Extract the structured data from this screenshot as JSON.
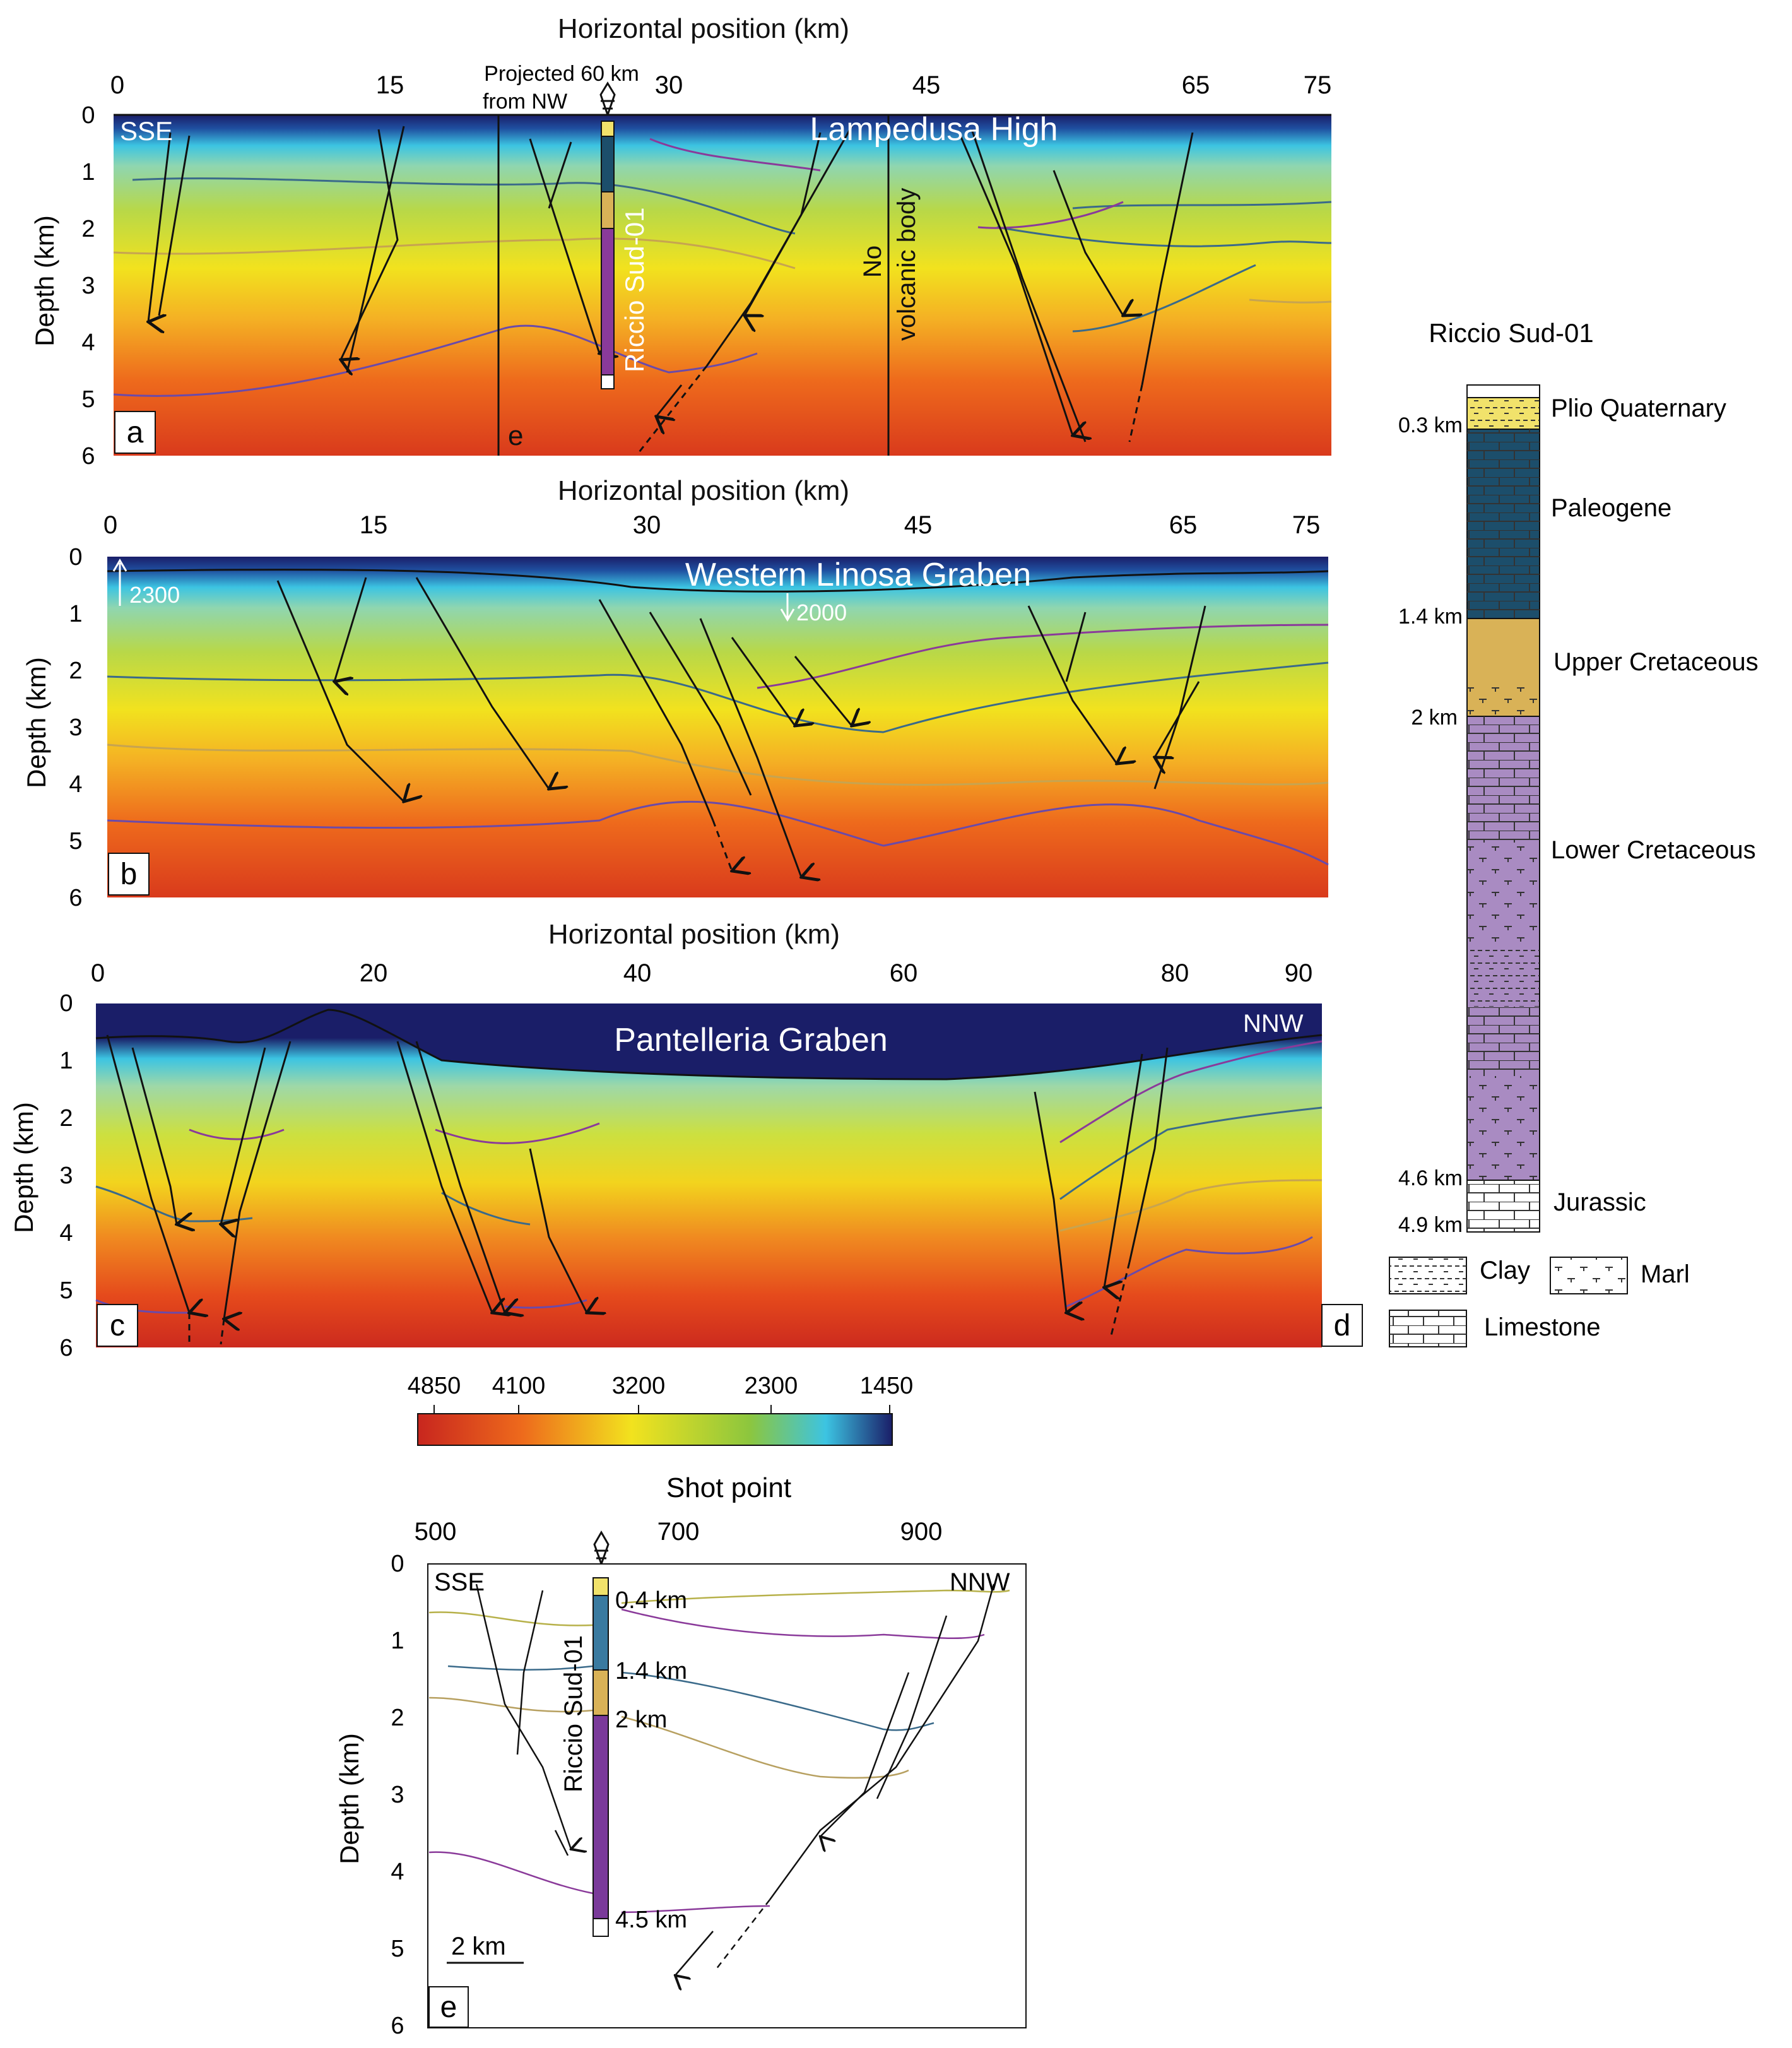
{
  "colors": {
    "deep_red": "#c8261e",
    "orange": "#ee6a1c",
    "yellow": "#f2e21e",
    "green": "#8cc63e",
    "cyan": "#3cc4e2",
    "navy": "#1a1e68",
    "plio": "#f1e26b",
    "paleogene": "#1c4e6b",
    "upper_cret": "#d9b257",
    "lower_cret": "#a98bc2",
    "jurassic": "#ffffff"
  },
  "panels": {
    "a": {
      "x_axis_title": "Horizontal position (km)",
      "x_ticks": [
        "0",
        "15",
        "30",
        "45",
        "65",
        "75"
      ],
      "y_axis_title": "Depth (km)",
      "y_ticks": [
        "0",
        "1",
        "2",
        "3",
        "4",
        "5",
        "6"
      ],
      "direction_left": "SSE",
      "structure_label": "Lampedusa High",
      "well_note_line1": "Projected 60 km",
      "well_note_line2": "from NW",
      "well_name": "Riccio Sud-01",
      "volcanic_note_line1": "No",
      "volcanic_note_line2": "volcanic body",
      "panel_letter": "a",
      "e_marker": "e"
    },
    "b": {
      "x_axis_title": "Horizontal position (km)",
      "x_ticks": [
        "0",
        "15",
        "30",
        "45",
        "65",
        "75"
      ],
      "y_axis_title": "Depth (km)",
      "y_ticks": [
        "0",
        "1",
        "2",
        "3",
        "4",
        "5",
        "6"
      ],
      "structure_label": "Western Linosa Graben",
      "velocity_up": "2300",
      "velocity_down": "2000",
      "panel_letter": "b"
    },
    "c": {
      "x_axis_title": "Horizontal position (km)",
      "x_ticks": [
        "0",
        "20",
        "40",
        "60",
        "80",
        "90"
      ],
      "y_axis_title": "Depth (km)",
      "y_ticks": [
        "0",
        "1",
        "2",
        "3",
        "4",
        "5",
        "6"
      ],
      "direction_right": "NNW",
      "structure_label": "Pantelleria Graben",
      "panel_letter": "c"
    },
    "d": {
      "title": "Riccio Sud-01",
      "units": [
        {
          "name": "Plio Quaternary",
          "depth": "0.3 km"
        },
        {
          "name": "Paleogene",
          "depth": "1.4 km"
        },
        {
          "name": "Upper Cretaceous",
          "depth": "2 km"
        },
        {
          "name": "Lower Cretaceous",
          "depth": "4.6 km"
        },
        {
          "name": "Jurassic",
          "depth": "4.9 km"
        }
      ],
      "legend": {
        "clay": "Clay",
        "marl": "Marl",
        "limestone": "Limestone"
      },
      "panel_letter": "d"
    },
    "e": {
      "x_axis_title": "Shot point",
      "x_ticks": [
        "500",
        "700",
        "900"
      ],
      "y_axis_title": "Depth (km)",
      "y_ticks": [
        "0",
        "1",
        "2",
        "3",
        "4",
        "5",
        "6"
      ],
      "direction_left": "SSE",
      "direction_right": "NNW",
      "well_name": "Riccio Sud-01",
      "depth_labels": [
        "0.4 km",
        "1.4 km",
        "2 km",
        "4.5 km"
      ],
      "scale_bar": "2 km",
      "panel_letter": "e"
    }
  },
  "colorbar": {
    "labels": [
      "4850",
      "4100",
      "3200",
      "2300",
      "1450"
    ]
  }
}
